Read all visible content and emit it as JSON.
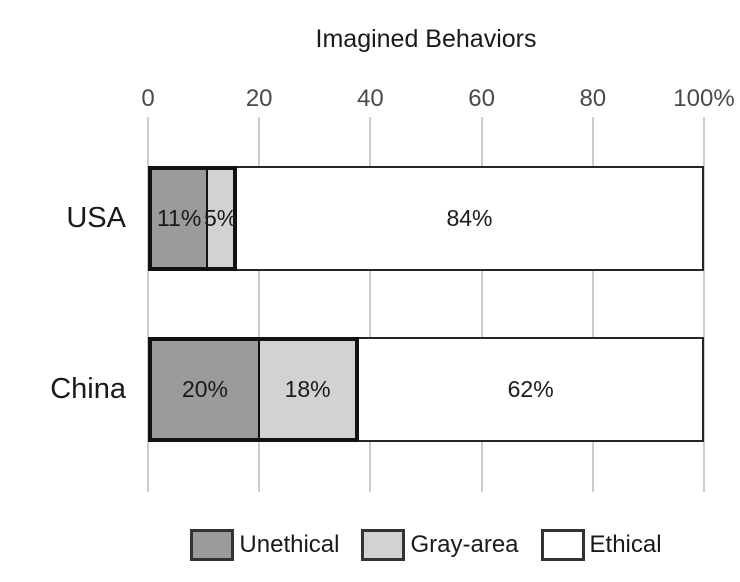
{
  "chart_data": {
    "type": "bar",
    "orientation": "horizontal",
    "stacked": true,
    "title": "Imagined Behaviors",
    "categories": [
      "USA",
      "China"
    ],
    "series": [
      {
        "name": "Unethical",
        "color": "#9b9b9b",
        "values": [
          11,
          20
        ],
        "labels": [
          "11%",
          "20%"
        ]
      },
      {
        "name": "Gray-area",
        "color": "#d2d2d2",
        "values": [
          5,
          18
        ],
        "labels": [
          "5%",
          "18%"
        ]
      },
      {
        "name": "Ethical",
        "color": "#ffffff",
        "values": [
          84,
          62
        ],
        "labels": [
          "84%",
          "62%"
        ]
      }
    ],
    "axis": {
      "position": "top",
      "range": [
        0,
        100
      ],
      "ticks": [
        0,
        20,
        40,
        60,
        80,
        100
      ],
      "tick_labels": [
        "0",
        "20",
        "40",
        "60",
        "80",
        "100%"
      ]
    },
    "grid": true,
    "legend": {
      "position": "bottom",
      "entries": [
        "Unethical",
        "Gray-area",
        "Ethical"
      ]
    },
    "highlight": {
      "grouped_series": [
        "Unethical",
        "Gray-area"
      ],
      "note": "thick black border around unethical + gray-area segments"
    }
  },
  "colors": {
    "unethical": "#9b9b9b",
    "gray_area": "#d2d2d2",
    "ethical": "#ffffff",
    "group_border": "#111111",
    "bar_border": "#262626",
    "swatch_border": "#333333",
    "gridline": "#cccccc",
    "tick_text": "#4a4a4a",
    "text": "#1a1a1a"
  }
}
